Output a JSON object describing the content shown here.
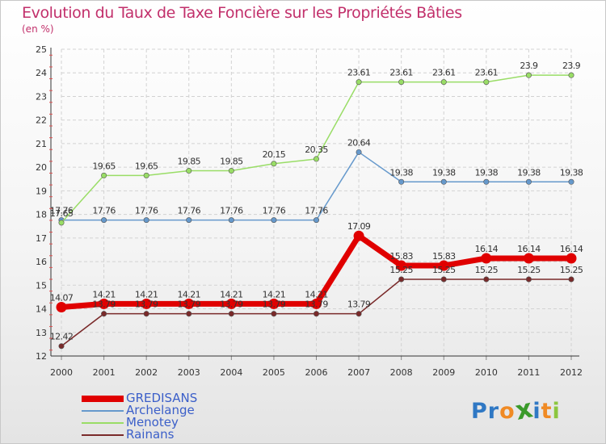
{
  "title": "Evolution du Taux de Taxe Foncière sur les Propriétés Bâties",
  "unit": "(en %)",
  "logo": {
    "text": "Proxiti",
    "letters": [
      "P",
      "r",
      "o",
      "x",
      "i",
      "t",
      "i"
    ],
    "colors": [
      "#2f78c4",
      "#2f78c4",
      "#f08a24",
      "#3a9a2a",
      "#2f78c4",
      "#f08a24",
      "#8cc63f"
    ]
  },
  "chart_data": {
    "type": "line",
    "title": "Evolution du Taux de Taxe Foncière sur les Propriétés Bâties",
    "ylabel": "(en %)",
    "xlabel": "",
    "ylim": [
      12,
      25
    ],
    "y_ticks": [
      "12",
      "13",
      "14",
      "15",
      "16",
      "17",
      "18",
      "19",
      "20",
      "21",
      "22",
      "23",
      "24",
      "25"
    ],
    "categories": [
      "2000",
      "2001",
      "2002",
      "2003",
      "2004",
      "2005",
      "2006",
      "2007",
      "2008",
      "2009",
      "2010",
      "2011",
      "2012"
    ],
    "grid": true,
    "series": [
      {
        "name": "GREDISANS",
        "color": "#e00000",
        "values": [
          14.07,
          14.21,
          14.21,
          14.21,
          14.21,
          14.21,
          14.21,
          17.09,
          15.83,
          15.83,
          16.14,
          16.14,
          16.14
        ],
        "labels": [
          "14.07",
          "14.21",
          "14.21",
          "14.21",
          "14.21",
          "14.21",
          "14.21",
          "17.09",
          "15.83",
          "15.83",
          "16.14",
          "16.14",
          "16.14"
        ]
      },
      {
        "name": "Archelange",
        "color": "#6699cc",
        "values": [
          17.76,
          17.76,
          17.76,
          17.76,
          17.76,
          17.76,
          17.76,
          20.64,
          19.38,
          19.38,
          19.38,
          19.38,
          19.38
        ],
        "labels": [
          "17.76",
          "17.76",
          "17.76",
          "17.76",
          "17.76",
          "17.76",
          "17.76",
          "20.64",
          "19.38",
          "19.38",
          "19.38",
          "19.38",
          "19.38"
        ]
      },
      {
        "name": "Menotey",
        "color": "#99dd66",
        "values": [
          17.65,
          19.65,
          19.65,
          19.85,
          19.85,
          20.15,
          20.35,
          23.61,
          23.61,
          23.61,
          23.61,
          23.9,
          23.9
        ],
        "labels": [
          "17.65",
          "19.65",
          "19.65",
          "19.85",
          "19.85",
          "20.15",
          "20.35",
          "23.61",
          "23.61",
          "23.61",
          "23.61",
          "23.9",
          "23.9"
        ]
      },
      {
        "name": "Rainans",
        "color": "#7a2a2a",
        "values": [
          12.42,
          13.79,
          13.79,
          13.79,
          13.79,
          13.79,
          13.79,
          13.79,
          15.25,
          15.25,
          15.25,
          15.25,
          15.25
        ],
        "labels": [
          "12.42",
          "13.79",
          "13.79",
          "13.79",
          "13.79",
          "13.79",
          "13.79",
          "13.79",
          "15.25",
          "15.25",
          "15.25",
          "15.25",
          "15.25"
        ]
      }
    ]
  }
}
